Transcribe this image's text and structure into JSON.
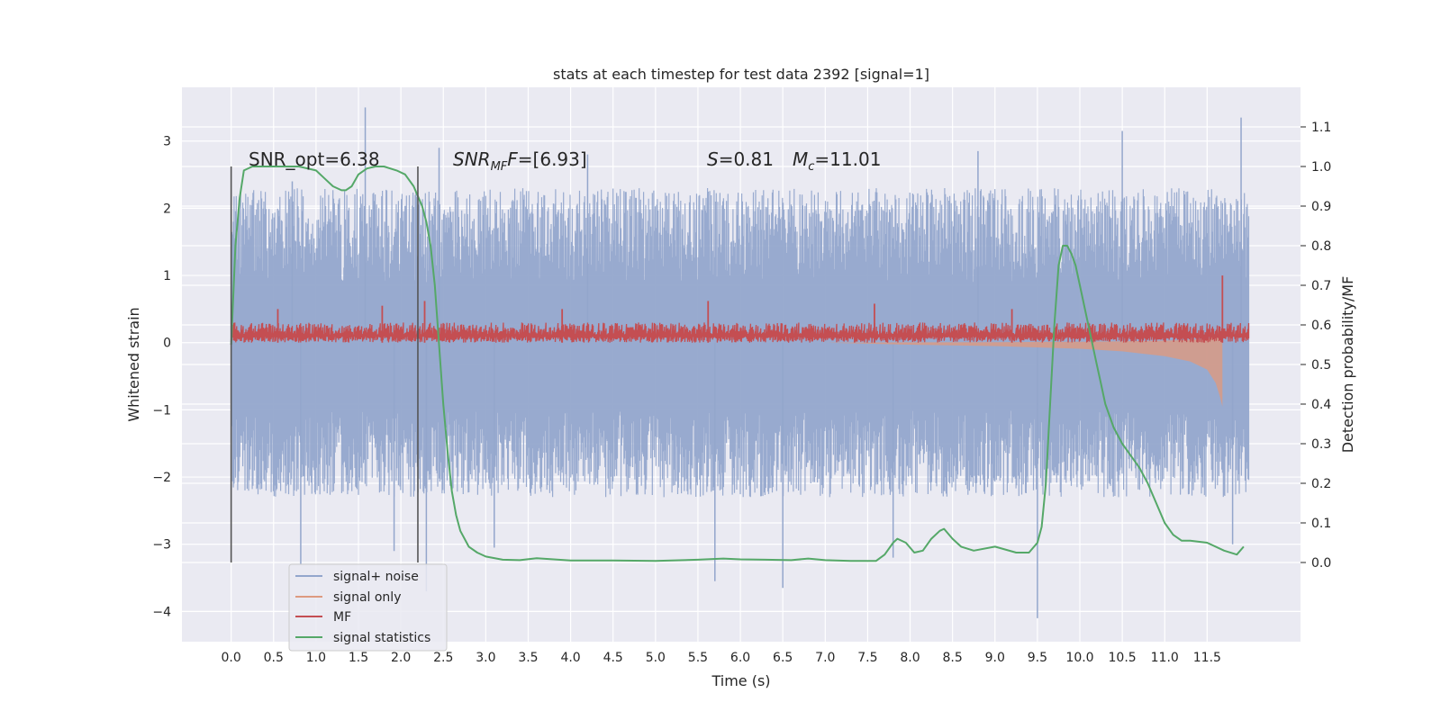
{
  "chart_data": {
    "type": "line",
    "title": "stats at each timestep for test data 2392 [signal=1]",
    "xlabel": "Time (s)",
    "ylabel_left": "Whitened strain",
    "ylabel_right": "Detection probability/MF",
    "xlim": [
      -0.58,
      12.6
    ],
    "ylim_left": [
      -4.45,
      3.8
    ],
    "ylim_right": [
      -0.2,
      1.2
    ],
    "x_ticks": [
      0.0,
      0.5,
      1.0,
      1.5,
      2.0,
      2.5,
      3.0,
      3.5,
      4.0,
      4.5,
      5.0,
      5.5,
      6.0,
      6.5,
      7.0,
      7.5,
      8.0,
      8.5,
      9.0,
      9.5,
      10.0,
      10.5,
      11.0,
      11.5
    ],
    "x_tick_labels": [
      "0.0",
      "0.5",
      "1.0",
      "1.5",
      "2.0",
      "2.5",
      "3.0",
      "3.5",
      "4.0",
      "4.5",
      "5.0",
      "5.5",
      "6.0",
      "6.5",
      "7.0",
      "7.5",
      "8.0",
      "8.5",
      "9.0",
      "9.5",
      "10.0",
      "10.5",
      "11.0",
      "11.5"
    ],
    "y_left_ticks": [
      -4,
      -3,
      -2,
      -1,
      0,
      1,
      2,
      3
    ],
    "y_left_tick_labels": [
      "−4",
      "−3",
      "−2",
      "−1",
      "0",
      "1",
      "2",
      "3"
    ],
    "y_right_ticks": [
      0.0,
      0.1,
      0.2,
      0.3,
      0.4,
      0.5,
      0.6,
      0.7,
      0.8,
      0.9,
      1.0,
      1.1
    ],
    "y_right_tick_labels": [
      "0.0",
      "0.1",
      "0.2",
      "0.3",
      "0.4",
      "0.5",
      "0.6",
      "0.7",
      "0.8",
      "0.9",
      "1.0",
      "1.1"
    ],
    "grid": true,
    "legend_position": "lower-left",
    "annotations": {
      "snr_opt": "SNR_opt=6.38",
      "snr_mf_base": "SNR",
      "snr_mf_sub": "MF",
      "snr_mf_rest": "=[6.93]",
      "s_sym": "S",
      "s_val": "=0.81",
      "mc_sym": "M",
      "mc_sub": "c",
      "mc_val": "=11.01"
    },
    "vertical_markers": [
      0.0,
      2.2
    ],
    "series": [
      {
        "name": "signal+ noise",
        "color": "#93a6cc",
        "axis": "left",
        "envelope": {
          "x": [
            0.0,
            11.99
          ],
          "upper_range": [
            0.9,
            2.3
          ],
          "lower_range": [
            -2.3,
            -1.0
          ],
          "spikes": [
            {
              "x": 0.72,
              "y": 2.4
            },
            {
              "x": 0.82,
              "y": -3.3
            },
            {
              "x": 1.58,
              "y": 3.5
            },
            {
              "x": 1.92,
              "y": -3.1
            },
            {
              "x": 2.3,
              "y": -3.7
            },
            {
              "x": 2.45,
              "y": 2.9
            },
            {
              "x": 5.7,
              "y": -3.55
            },
            {
              "x": 6.5,
              "y": -3.65
            },
            {
              "x": 9.5,
              "y": -4.1
            },
            {
              "x": 10.5,
              "y": 3.15
            },
            {
              "x": 11.9,
              "y": 3.35
            },
            {
              "x": 11.8,
              "y": -3.0
            },
            {
              "x": 3.1,
              "y": -3.05
            },
            {
              "x": 7.8,
              "y": -3.2
            },
            {
              "x": 8.8,
              "y": 2.85
            },
            {
              "x": 4.2,
              "y": 2.8
            }
          ]
        }
      },
      {
        "name": "signal only",
        "color": "#dd9a80",
        "axis": "left",
        "x": [
          7.0,
          8.0,
          9.0,
          9.5,
          10.0,
          10.5,
          11.0,
          11.3,
          11.5,
          11.6,
          11.65,
          11.68
        ],
        "amplitude": [
          0.0,
          0.03,
          0.05,
          0.07,
          0.09,
          0.13,
          0.2,
          0.28,
          0.4,
          0.6,
          0.8,
          0.95
        ]
      },
      {
        "name": "MF",
        "color": "#c44e52",
        "axis": "left",
        "baseline_range": [
          0.0,
          0.3
        ],
        "spikes": [
          {
            "x": 2.28,
            "y": 0.62
          },
          {
            "x": 1.78,
            "y": 0.55
          },
          {
            "x": 5.62,
            "y": 0.62
          },
          {
            "x": 7.58,
            "y": 0.58
          },
          {
            "x": 11.68,
            "y": 1.0
          },
          {
            "x": 0.55,
            "y": 0.5
          },
          {
            "x": 3.9,
            "y": 0.5
          },
          {
            "x": 9.2,
            "y": 0.5
          }
        ]
      },
      {
        "name": "signal statistics",
        "color": "#55a868",
        "axis": "right",
        "x": [
          0.0,
          0.05,
          0.1,
          0.15,
          0.25,
          0.4,
          0.6,
          0.8,
          1.0,
          1.1,
          1.2,
          1.3,
          1.35,
          1.42,
          1.5,
          1.6,
          1.7,
          1.8,
          1.95,
          2.05,
          2.15,
          2.25,
          2.3,
          2.35,
          2.4,
          2.45,
          2.5,
          2.55,
          2.6,
          2.65,
          2.7,
          2.8,
          2.9,
          3.0,
          3.2,
          3.4,
          3.6,
          3.8,
          4.0,
          4.5,
          5.0,
          5.5,
          5.8,
          6.0,
          6.3,
          6.6,
          6.8,
          7.0,
          7.3,
          7.6,
          7.7,
          7.8,
          7.85,
          7.95,
          8.05,
          8.15,
          8.25,
          8.35,
          8.4,
          8.5,
          8.6,
          8.75,
          9.0,
          9.25,
          9.4,
          9.5,
          9.55,
          9.6,
          9.65,
          9.7,
          9.75,
          9.8,
          9.85,
          9.9,
          9.95,
          10.0,
          10.05,
          10.1,
          10.15,
          10.2,
          10.25,
          10.3,
          10.4,
          10.5,
          10.6,
          10.7,
          10.8,
          10.9,
          11.0,
          11.1,
          11.2,
          11.3,
          11.5,
          11.7,
          11.85,
          11.93
        ],
        "values": [
          0.55,
          0.8,
          0.92,
          0.99,
          1.0,
          1.0,
          1.0,
          1.0,
          0.99,
          0.97,
          0.95,
          0.94,
          0.94,
          0.95,
          0.98,
          0.995,
          1.0,
          1.0,
          0.99,
          0.98,
          0.95,
          0.9,
          0.86,
          0.8,
          0.7,
          0.55,
          0.4,
          0.28,
          0.18,
          0.12,
          0.08,
          0.04,
          0.025,
          0.015,
          0.007,
          0.006,
          0.011,
          0.008,
          0.005,
          0.005,
          0.004,
          0.007,
          0.01,
          0.008,
          0.007,
          0.006,
          0.01,
          0.006,
          0.004,
          0.004,
          0.02,
          0.05,
          0.06,
          0.05,
          0.025,
          0.03,
          0.06,
          0.08,
          0.085,
          0.06,
          0.04,
          0.03,
          0.04,
          0.025,
          0.025,
          0.05,
          0.09,
          0.2,
          0.4,
          0.6,
          0.75,
          0.8,
          0.8,
          0.78,
          0.75,
          0.7,
          0.65,
          0.6,
          0.55,
          0.5,
          0.45,
          0.4,
          0.34,
          0.3,
          0.27,
          0.24,
          0.2,
          0.15,
          0.1,
          0.07,
          0.055,
          0.055,
          0.05,
          0.03,
          0.02,
          0.04
        ]
      }
    ]
  }
}
